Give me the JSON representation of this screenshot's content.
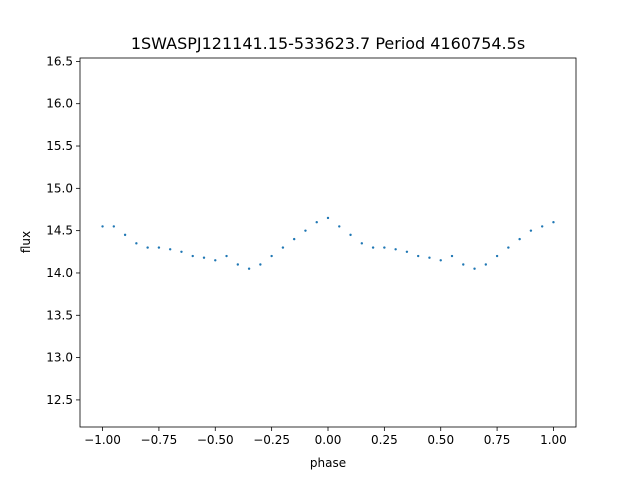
{
  "chart_data": {
    "type": "scatter",
    "title": "1SWASPJ121141.15-533623.7 Period 4160754.5s",
    "xlabel": "phase",
    "ylabel": "flux",
    "xlim": [
      -1.1,
      1.1
    ],
    "ylim": [
      12.18,
      16.54
    ],
    "x_ticks": [
      -1.0,
      -0.75,
      -0.5,
      -0.25,
      0.0,
      0.25,
      0.5,
      0.75,
      1.0
    ],
    "x_tick_labels": [
      "−1.00",
      "−0.75",
      "−0.50",
      "−0.25",
      "0.00",
      "0.25",
      "0.50",
      "0.75",
      "1.00"
    ],
    "y_ticks": [
      12.5,
      13.0,
      13.5,
      14.0,
      14.5,
      15.0,
      15.5,
      16.0,
      16.5
    ],
    "y_tick_labels": [
      "12.5",
      "13.0",
      "13.5",
      "14.0",
      "14.5",
      "15.0",
      "15.5",
      "16.0",
      "16.5"
    ],
    "series": [
      {
        "color": "#1f77b4",
        "x": [
          -1.0,
          -0.95,
          -0.9,
          -0.85,
          -0.8,
          -0.75,
          -0.7,
          -0.65,
          -0.6,
          -0.55,
          -0.5,
          -0.45,
          -0.4,
          -0.35,
          -0.3,
          -0.25,
          -0.2,
          -0.15,
          -0.1,
          -0.05,
          0.0,
          0.05,
          0.1,
          0.15,
          0.2,
          0.25,
          0.3,
          0.35,
          0.4,
          0.45,
          0.5,
          0.55,
          0.6,
          0.65,
          0.7,
          0.75,
          0.8,
          0.85,
          0.9,
          0.95,
          1.0
        ],
        "y": [
          14.55,
          14.55,
          14.45,
          14.35,
          14.3,
          14.3,
          14.28,
          14.25,
          14.2,
          14.18,
          14.15,
          14.2,
          14.1,
          14.05,
          14.1,
          14.2,
          14.3,
          14.4,
          14.5,
          14.6,
          14.65,
          14.55,
          14.45,
          14.35,
          14.3,
          14.3,
          14.28,
          14.25,
          14.2,
          14.18,
          14.15,
          14.2,
          14.1,
          14.05,
          14.1,
          14.2,
          14.3,
          14.4,
          14.5,
          14.55,
          14.6
        ]
      }
    ]
  }
}
